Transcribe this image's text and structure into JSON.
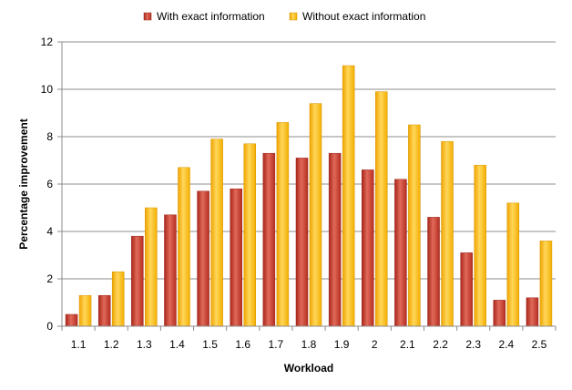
{
  "chart_data": {
    "type": "bar",
    "title": "",
    "xlabel": "Workload",
    "ylabel": "Percentage improvement",
    "ylim": [
      0,
      12
    ],
    "yticks": [
      0,
      2,
      4,
      6,
      8,
      10,
      12
    ],
    "grid": true,
    "legend_position": "top",
    "categories": [
      "1.1",
      "1.2",
      "1.3",
      "1.4",
      "1.5",
      "1.6",
      "1.7",
      "1.8",
      "1.9",
      "2",
      "2.1",
      "2.2",
      "2.3",
      "2.4",
      "2.5"
    ],
    "series": [
      {
        "name": "With exact information",
        "color": "#c0392b",
        "values": [
          0.5,
          1.3,
          3.8,
          4.7,
          5.7,
          5.8,
          7.3,
          7.1,
          7.3,
          6.6,
          6.2,
          4.6,
          3.1,
          1.1,
          1.2
        ]
      },
      {
        "name": "Without exact information",
        "color": "#f5b400",
        "values": [
          1.3,
          2.3,
          5.0,
          6.7,
          7.9,
          7.7,
          8.6,
          9.4,
          11.0,
          9.9,
          8.5,
          7.8,
          6.8,
          5.2,
          3.6
        ]
      }
    ]
  }
}
